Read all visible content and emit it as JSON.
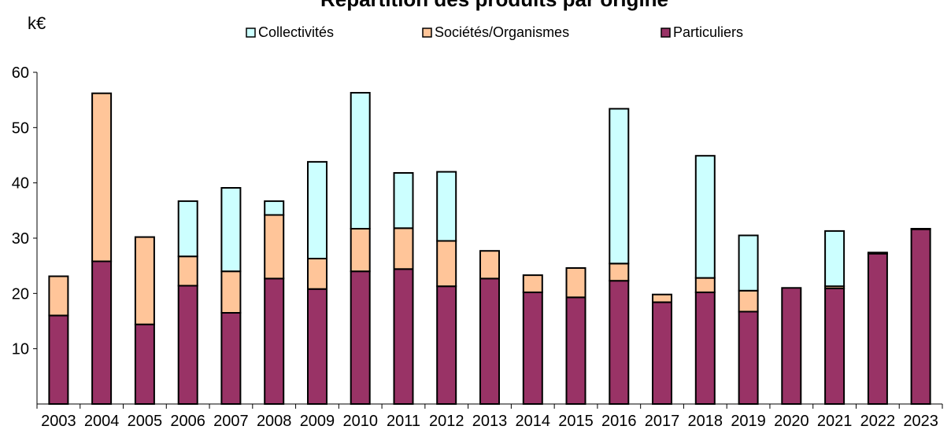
{
  "chart_data": {
    "type": "bar",
    "stacked": true,
    "title": "Répartition des produits par origine",
    "unit": "k€",
    "ylim": [
      0,
      60
    ],
    "yticks": [
      10,
      20,
      30,
      40,
      50,
      60
    ],
    "grid": false,
    "legend_position": "top",
    "categories": [
      "2003",
      "2004",
      "2005",
      "2006",
      "2007",
      "2008",
      "2009",
      "2010",
      "2011",
      "2012",
      "2013",
      "2014",
      "2015",
      "2016",
      "2017",
      "2018",
      "2019",
      "2020",
      "2021",
      "2022",
      "2023"
    ],
    "series": [
      {
        "name": "Particuliers",
        "color": "#993366",
        "values": [
          16.0,
          25.8,
          14.4,
          21.4,
          16.5,
          22.7,
          20.8,
          24.0,
          24.4,
          21.3,
          22.7,
          20.2,
          19.3,
          22.3,
          18.4,
          20.2,
          16.7,
          21.0,
          20.9,
          27.2,
          31.6
        ]
      },
      {
        "name": "Sociétés/Organismes",
        "color": "#FFC599",
        "values": [
          7.1,
          30.4,
          15.8,
          5.3,
          7.5,
          11.5,
          5.5,
          7.7,
          7.4,
          8.2,
          5.0,
          3.1,
          5.3,
          3.1,
          1.4,
          2.6,
          3.8,
          0,
          0.4,
          0.2,
          0.1
        ]
      },
      {
        "name": "Collectivités",
        "color": "#CCFFFF",
        "values": [
          0,
          0,
          0,
          10.0,
          15.1,
          2.5,
          17.5,
          24.6,
          10.0,
          12.5,
          0,
          0,
          0,
          28.0,
          0,
          22.1,
          10.0,
          0,
          10.0,
          0,
          0
        ]
      }
    ],
    "legend_order": [
      "Collectivités",
      "Sociétés/Organismes",
      "Particuliers"
    ]
  }
}
